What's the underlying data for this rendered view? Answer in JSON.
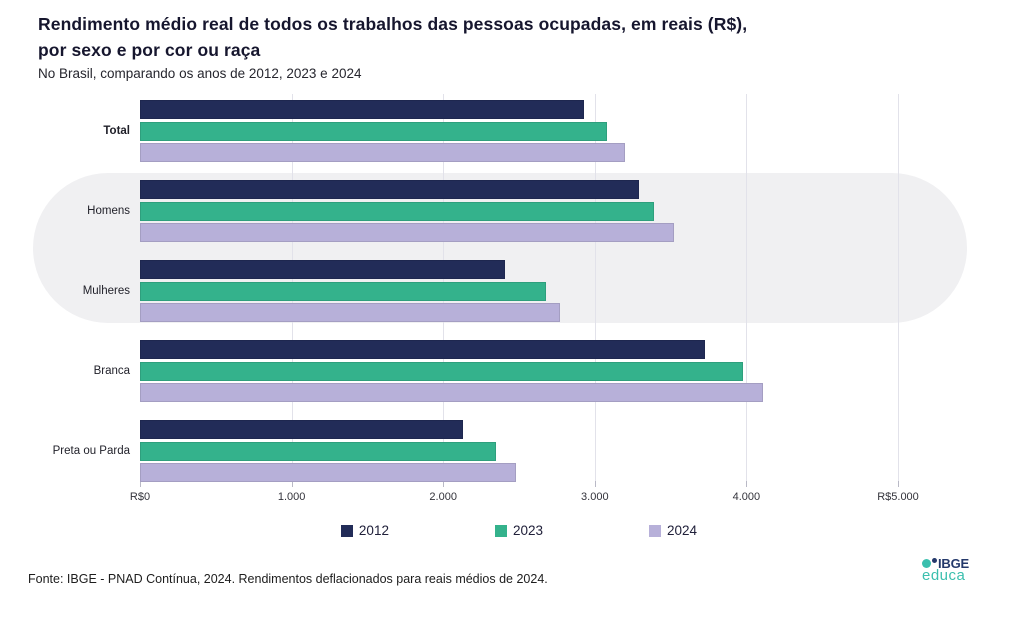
{
  "header": {
    "title_line1": "Rendimento médio real de todos os trabalhos das pessoas ocupadas, em reais (R$),",
    "title_line2": "por sexo e por cor ou raça",
    "subtitle": "No Brasil, comparando os anos de 2012, 2023 e 2024"
  },
  "chart_data": {
    "type": "bar",
    "orientation": "horizontal",
    "title": "Rendimento médio real de todos os trabalhos das pessoas ocupadas, em reais (R$), por sexo e por cor ou raça",
    "subtitle": "No Brasil, comparando os anos de 2012, 2023 e 2024",
    "categories": [
      "Total",
      "Homens",
      "Mulheres",
      "Branca",
      "Preta ou Parda"
    ],
    "series": [
      {
        "name": "2012",
        "color": "#222c58",
        "values": [
          2930,
          3290,
          2410,
          3730,
          2130
        ]
      },
      {
        "name": "2023",
        "color": "#34b28c",
        "values": [
          3080,
          3390,
          2680,
          3980,
          2350
        ]
      },
      {
        "name": "2024",
        "color": "#b7b0d9",
        "values": [
          3200,
          3520,
          2770,
          4110,
          2480
        ]
      }
    ],
    "xlim": [
      0,
      5000
    ],
    "x_ticks": [
      {
        "value": 0,
        "label": "R$0"
      },
      {
        "value": 1000,
        "label": "1.000"
      },
      {
        "value": 2000,
        "label": "2.000"
      },
      {
        "value": 3000,
        "label": "3.000"
      },
      {
        "value": 4000,
        "label": "4.000"
      },
      {
        "value": 5000,
        "label": "R$5.000"
      }
    ],
    "grid": true,
    "legend_position": "bottom",
    "background_highlight": {
      "rows": [
        "Homens",
        "Mulheres"
      ],
      "color": "#f0f0f2"
    }
  },
  "footer": {
    "source": "Fonte: IBGE - PNAD Contínua, 2024. Rendimentos deflacionados para reais médios de 2024."
  },
  "logo": {
    "ibge": "IBGE",
    "educa": "educa",
    "teal_dot_icon": "teal-dot-icon",
    "navy_dot_icon": "navy-dot-icon"
  }
}
